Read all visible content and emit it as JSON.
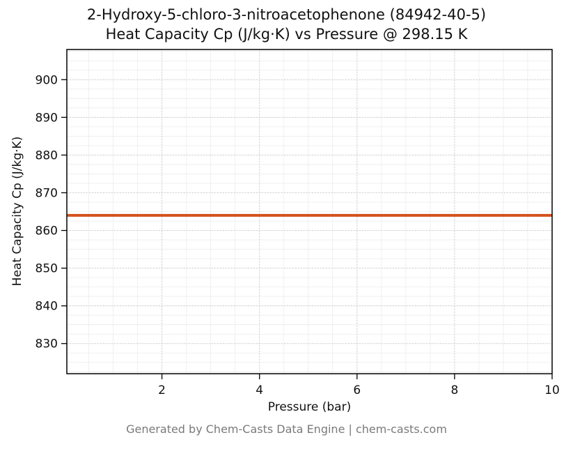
{
  "chart_data": {
    "type": "line",
    "title_line1": "2-Hydroxy-5-chloro-3-nitroacetophenone (84942-40-5)",
    "title_line2": "Heat Capacity Cp (J/kg·K) vs Pressure @ 298.15 K",
    "xlabel": "Pressure (bar)",
    "ylabel": "Heat Capacity Cp (J/kg·K)",
    "xlim": [
      0.05,
      10
    ],
    "ylim": [
      822,
      908
    ],
    "xticks": [
      2,
      4,
      6,
      8,
      10
    ],
    "yticks": [
      830,
      840,
      850,
      860,
      870,
      880,
      890,
      900
    ],
    "grid": true,
    "grid_style": "dotted",
    "legend": "none",
    "series": [
      {
        "name": "Heat Capacity Cp",
        "x": [
          0.05,
          10
        ],
        "y": [
          864,
          864
        ],
        "color": "#d2521d",
        "linewidth": 4
      }
    ]
  },
  "footer": {
    "text": "Generated by Chem-Casts Data Engine | chem-casts.com"
  },
  "colors": {
    "axis": "#000000",
    "major_grid": "#c9c9c9",
    "minor_grid": "#ececec",
    "tick_label": "#111111",
    "footer_text": "#7a7a7a"
  }
}
